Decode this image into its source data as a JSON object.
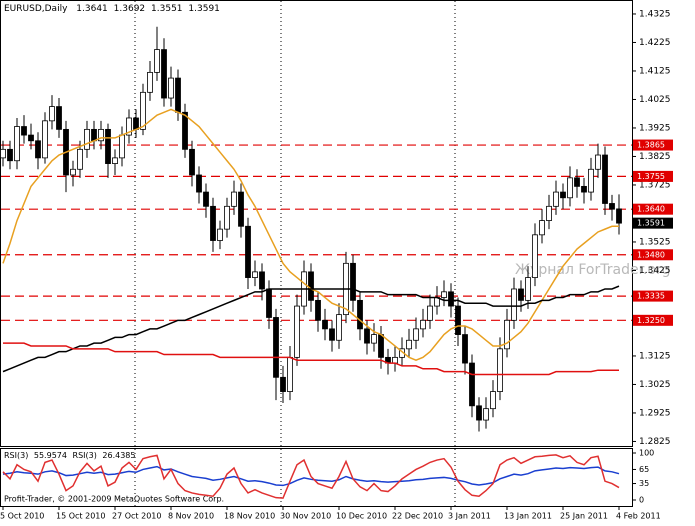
{
  "chart_data": {
    "type": "candlestick",
    "symbol": "EURUSD,Daily",
    "categories": [
      "5 Oct 2010",
      null,
      null,
      null,
      null,
      null,
      null,
      null,
      "15 Oct 2010",
      null,
      null,
      null,
      null,
      null,
      null,
      null,
      "27 Oct 2010",
      null,
      null,
      null,
      null,
      null,
      null,
      null,
      "8 Nov 2010",
      null,
      null,
      null,
      null,
      null,
      null,
      null,
      "18 Nov 2010",
      null,
      null,
      null,
      null,
      null,
      null,
      null,
      "30 Nov 2010",
      null,
      null,
      null,
      null,
      null,
      null,
      null,
      "10 Dec 2010",
      null,
      null,
      null,
      null,
      null,
      null,
      null,
      "22 Dec 2010",
      null,
      null,
      null,
      null,
      null,
      null,
      null,
      "3 Jan 2011",
      null,
      null,
      null,
      null,
      null,
      null,
      null,
      "13 Jan 2011",
      null,
      null,
      null,
      null,
      null,
      null,
      null,
      "25 Jan 2011",
      null,
      null,
      null,
      null,
      null,
      null,
      null,
      "4 Feb 2011"
    ],
    "ohlc": [
      [
        1.382,
        1.388,
        1.379,
        1.385
      ],
      [
        1.385,
        1.388,
        1.378,
        1.381
      ],
      [
        1.381,
        1.396,
        1.378,
        1.393
      ],
      [
        1.393,
        1.397,
        1.387,
        1.39
      ],
      [
        1.39,
        1.394,
        1.385,
        1.388
      ],
      [
        1.388,
        1.391,
        1.378,
        1.382
      ],
      [
        1.382,
        1.398,
        1.38,
        1.395
      ],
      [
        1.395,
        1.404,
        1.392,
        1.4
      ],
      [
        1.4,
        1.403,
        1.389,
        1.392
      ],
      [
        1.392,
        1.395,
        1.37,
        1.376
      ],
      [
        1.376,
        1.381,
        1.372,
        1.378
      ],
      [
        1.378,
        1.388,
        1.375,
        1.385
      ],
      [
        1.385,
        1.395,
        1.382,
        1.392
      ],
      [
        1.392,
        1.395,
        1.385,
        1.388
      ],
      [
        1.388,
        1.395,
        1.385,
        1.392
      ],
      [
        1.392,
        1.394,
        1.375,
        1.38
      ],
      [
        1.38,
        1.385,
        1.376,
        1.382
      ],
      [
        1.382,
        1.393,
        1.379,
        1.39
      ],
      [
        1.39,
        1.399,
        1.387,
        1.396
      ],
      [
        1.396,
        1.399,
        1.389,
        1.392
      ],
      [
        1.392,
        1.408,
        1.39,
        1.405
      ],
      [
        1.405,
        1.416,
        1.402,
        1.412
      ],
      [
        1.412,
        1.428,
        1.409,
        1.42
      ],
      [
        1.42,
        1.424,
        1.4,
        1.403
      ],
      [
        1.403,
        1.414,
        1.4,
        1.41
      ],
      [
        1.41,
        1.413,
        1.395,
        1.398
      ],
      [
        1.398,
        1.401,
        1.382,
        1.385
      ],
      [
        1.385,
        1.388,
        1.372,
        1.376
      ],
      [
        1.376,
        1.379,
        1.366,
        1.37
      ],
      [
        1.37,
        1.373,
        1.361,
        1.365
      ],
      [
        1.365,
        1.368,
        1.349,
        1.353
      ],
      [
        1.353,
        1.36,
        1.35,
        1.357
      ],
      [
        1.357,
        1.368,
        1.354,
        1.365
      ],
      [
        1.365,
        1.374,
        1.362,
        1.37
      ],
      [
        1.37,
        1.373,
        1.354,
        1.358
      ],
      [
        1.358,
        1.361,
        1.336,
        1.34
      ],
      [
        1.34,
        1.346,
        1.337,
        1.342
      ],
      [
        1.342,
        1.345,
        1.332,
        1.336
      ],
      [
        1.336,
        1.339,
        1.322,
        1.326
      ],
      [
        1.326,
        1.329,
        1.297,
        1.305
      ],
      [
        1.305,
        1.309,
        1.296,
        1.3
      ],
      [
        1.3,
        1.316,
        1.297,
        1.312
      ],
      [
        1.312,
        1.334,
        1.309,
        1.33
      ],
      [
        1.33,
        1.346,
        1.327,
        1.342
      ],
      [
        1.342,
        1.345,
        1.328,
        1.332
      ],
      [
        1.332,
        1.335,
        1.321,
        1.325
      ],
      [
        1.325,
        1.329,
        1.318,
        1.322
      ],
      [
        1.322,
        1.325,
        1.314,
        1.318
      ],
      [
        1.318,
        1.331,
        1.315,
        1.327
      ],
      [
        1.327,
        1.349,
        1.324,
        1.345
      ],
      [
        1.345,
        1.348,
        1.328,
        1.332
      ],
      [
        1.332,
        1.335,
        1.318,
        1.322
      ],
      [
        1.322,
        1.325,
        1.313,
        1.317
      ],
      [
        1.317,
        1.324,
        1.314,
        1.32
      ],
      [
        1.32,
        1.323,
        1.308,
        1.312
      ],
      [
        1.312,
        1.315,
        1.306,
        1.31
      ],
      [
        1.31,
        1.316,
        1.307,
        1.312
      ],
      [
        1.312,
        1.319,
        1.309,
        1.315
      ],
      [
        1.315,
        1.322,
        1.312,
        1.318
      ],
      [
        1.318,
        1.326,
        1.315,
        1.322
      ],
      [
        1.322,
        1.329,
        1.319,
        1.325
      ],
      [
        1.325,
        1.334,
        1.322,
        1.33
      ],
      [
        1.33,
        1.337,
        1.327,
        1.333
      ],
      [
        1.333,
        1.339,
        1.33,
        1.335
      ],
      [
        1.335,
        1.338,
        1.326,
        1.33
      ],
      [
        1.33,
        1.333,
        1.316,
        1.32
      ],
      [
        1.32,
        1.323,
        1.306,
        1.31
      ],
      [
        1.31,
        1.313,
        1.291,
        1.295
      ],
      [
        1.295,
        1.298,
        1.286,
        1.29
      ],
      [
        1.29,
        1.298,
        1.287,
        1.294
      ],
      [
        1.294,
        1.304,
        1.291,
        1.3
      ],
      [
        1.3,
        1.319,
        1.297,
        1.315
      ],
      [
        1.315,
        1.329,
        1.312,
        1.325
      ],
      [
        1.325,
        1.34,
        1.322,
        1.336
      ],
      [
        1.336,
        1.339,
        1.328,
        1.332
      ],
      [
        1.332,
        1.344,
        1.329,
        1.34
      ],
      [
        1.34,
        1.359,
        1.337,
        1.355
      ],
      [
        1.355,
        1.364,
        1.352,
        1.36
      ],
      [
        1.36,
        1.369,
        1.357,
        1.365
      ],
      [
        1.365,
        1.374,
        1.362,
        1.37
      ],
      [
        1.37,
        1.373,
        1.364,
        1.368
      ],
      [
        1.368,
        1.379,
        1.365,
        1.375
      ],
      [
        1.375,
        1.378,
        1.368,
        1.372
      ],
      [
        1.372,
        1.375,
        1.366,
        1.37
      ],
      [
        1.37,
        1.382,
        1.367,
        1.378
      ],
      [
        1.378,
        1.387,
        1.375,
        1.383
      ],
      [
        1.383,
        1.386,
        1.362,
        1.366
      ],
      [
        1.366,
        1.369,
        1.36,
        1.364
      ],
      [
        1.3641,
        1.3692,
        1.3551,
        1.3591
      ]
    ],
    "up_color": "#ffffff",
    "down_color": "#000000",
    "ylim": [
      1.2809,
      1.4374
    ],
    "yticks": [
      1.4325,
      1.4225,
      1.4125,
      1.4025,
      1.3925,
      1.3825,
      1.3725,
      1.3525,
      1.3425,
      1.3125,
      1.3025,
      1.2925,
      1.2825
    ],
    "levels": [
      1.3865,
      1.3755,
      {
        "value": 1.364,
        "label": "1.3640"
      },
      {
        "value": 1.348,
        "label": "1.3480"
      },
      1.3335,
      {
        "value": 1.325,
        "label": "1.3250"
      }
    ],
    "level_color": "#e00000",
    "last_color": "#000000",
    "moving_averages": [
      {
        "color": "#e8a020",
        "values": [
          1.345,
          1.352,
          1.36,
          1.366,
          1.372,
          1.375,
          1.378,
          1.381,
          1.383,
          1.384,
          1.385,
          1.386,
          1.387,
          1.388,
          1.389,
          1.389,
          1.389,
          1.39,
          1.391,
          1.392,
          1.393,
          1.395,
          1.397,
          1.398,
          1.399,
          1.398,
          1.397,
          1.395,
          1.393,
          1.39,
          1.387,
          1.384,
          1.381,
          1.378,
          1.374,
          1.369,
          1.365,
          1.36,
          1.355,
          1.35,
          1.345,
          1.342,
          1.34,
          1.338,
          1.336,
          1.335,
          1.333,
          1.331,
          1.33,
          1.329,
          1.327,
          1.325,
          1.323,
          1.321,
          1.32,
          1.318,
          1.316,
          1.314,
          1.312,
          1.311,
          1.312,
          1.314,
          1.317,
          1.32,
          1.322,
          1.323,
          1.323,
          1.322,
          1.32,
          1.318,
          1.316,
          1.316,
          1.317,
          1.319,
          1.321,
          1.324,
          1.328,
          1.332,
          1.336,
          1.34,
          1.344,
          1.347,
          1.35,
          1.352,
          1.354,
          1.356,
          1.357,
          1.358,
          1.358
        ]
      },
      {
        "color": "#000000",
        "values": [
          1.307,
          1.308,
          1.309,
          1.31,
          1.311,
          1.312,
          1.312,
          1.313,
          1.314,
          1.314,
          1.315,
          1.316,
          1.316,
          1.317,
          1.317,
          1.318,
          1.319,
          1.319,
          1.32,
          1.32,
          1.321,
          1.322,
          1.322,
          1.323,
          1.324,
          1.325,
          1.325,
          1.326,
          1.327,
          1.328,
          1.329,
          1.33,
          1.331,
          1.332,
          1.333,
          1.334,
          1.335,
          1.335,
          1.336,
          1.336,
          1.336,
          1.336,
          1.336,
          1.336,
          1.336,
          1.336,
          1.336,
          1.336,
          1.336,
          1.336,
          1.336,
          1.335,
          1.335,
          1.335,
          1.335,
          1.334,
          1.334,
          1.334,
          1.334,
          1.334,
          1.333,
          1.333,
          1.333,
          1.332,
          1.332,
          1.332,
          1.331,
          1.331,
          1.331,
          1.331,
          1.33,
          1.33,
          1.33,
          1.33,
          1.33,
          1.331,
          1.331,
          1.332,
          1.332,
          1.333,
          1.333,
          1.334,
          1.334,
          1.334,
          1.335,
          1.335,
          1.336,
          1.336,
          1.337
        ]
      },
      {
        "color": "#e01010",
        "values": [
          1.317,
          1.317,
          1.317,
          1.317,
          1.316,
          1.316,
          1.316,
          1.316,
          1.316,
          1.316,
          1.315,
          1.315,
          1.315,
          1.315,
          1.315,
          1.315,
          1.314,
          1.314,
          1.314,
          1.314,
          1.314,
          1.314,
          1.314,
          1.313,
          1.313,
          1.313,
          1.313,
          1.313,
          1.313,
          1.313,
          1.313,
          1.312,
          1.312,
          1.312,
          1.312,
          1.312,
          1.312,
          1.312,
          1.312,
          1.312,
          1.312,
          1.312,
          1.311,
          1.311,
          1.311,
          1.311,
          1.311,
          1.311,
          1.311,
          1.311,
          1.311,
          1.311,
          1.311,
          1.311,
          1.311,
          1.31,
          1.31,
          1.309,
          1.309,
          1.309,
          1.308,
          1.308,
          1.308,
          1.307,
          1.307,
          1.307,
          1.307,
          1.306,
          1.306,
          1.306,
          1.306,
          1.306,
          1.306,
          1.306,
          1.306,
          1.306,
          1.306,
          1.306,
          1.306,
          1.307,
          1.307,
          1.307,
          1.307,
          1.307,
          1.307,
          1.3075,
          1.3075,
          1.3075,
          1.3075
        ]
      }
    ],
    "watermark": "Журнал ForTrader.org",
    "copyright": "Profit-Trader, © 2001-2009 MetaQuotes Software Corp.",
    "indicator": {
      "type": "line",
      "ylim": [
        0,
        100
      ],
      "yticks": [
        100,
        65,
        35,
        0
      ],
      "series": [
        {
          "name": "RSI(3)",
          "color": "#1a3fd0",
          "values": [
            55,
            57,
            60,
            58,
            57,
            55,
            60,
            62,
            58,
            52,
            53,
            56,
            59,
            57,
            59,
            54,
            55,
            58,
            61,
            59,
            65,
            68,
            71,
            64,
            66,
            60,
            55,
            50,
            48,
            46,
            42,
            44,
            47,
            50,
            45,
            40,
            41,
            39,
            36,
            32,
            31,
            35,
            42,
            47,
            44,
            42,
            41,
            40,
            43,
            50,
            45,
            42,
            40,
            41,
            39,
            38,
            39,
            40,
            41,
            43,
            44,
            46,
            47,
            48,
            46,
            42,
            39,
            34,
            32,
            34,
            37,
            45,
            50,
            55,
            53,
            56,
            62,
            64,
            66,
            68,
            67,
            69,
            68,
            67,
            69,
            70,
            62,
            60,
            55.9574
          ]
        },
        {
          "name": "RSI(3)",
          "color": "#e03030",
          "values": [
            60,
            45,
            75,
            65,
            60,
            40,
            80,
            85,
            55,
            20,
            30,
            60,
            78,
            62,
            72,
            30,
            38,
            68,
            80,
            65,
            88,
            92,
            95,
            45,
            65,
            35,
            20,
            15,
            12,
            10,
            8,
            25,
            55,
            68,
            35,
            15,
            22,
            15,
            10,
            5,
            4,
            40,
            75,
            85,
            50,
            35,
            30,
            25,
            50,
            82,
            45,
            28,
            20,
            35,
            20,
            18,
            30,
            45,
            55,
            65,
            72,
            80,
            85,
            88,
            70,
            40,
            22,
            10,
            8,
            20,
            35,
            75,
            85,
            90,
            78,
            85,
            92,
            93,
            95,
            96,
            90,
            94,
            80,
            75,
            90,
            93,
            40,
            35,
            26.4385
          ]
        }
      ]
    }
  }
}
